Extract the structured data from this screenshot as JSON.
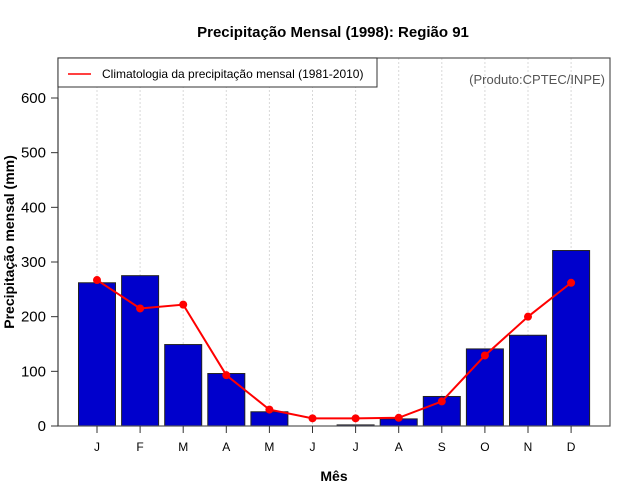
{
  "chart_data": {
    "type": "bar",
    "title": "Precipitação Mensal (1998): Região 91",
    "xlabel": "Mês",
    "ylabel": "Precipitação mensal (mm)",
    "categories": [
      "J",
      "F",
      "M",
      "A",
      "M",
      "J",
      "J",
      "A",
      "S",
      "O",
      "N",
      "D"
    ],
    "ylim": [
      0,
      670
    ],
    "yticks": [
      0,
      100,
      200,
      300,
      400,
      500,
      600
    ],
    "grid": "vertical dashed",
    "series": [
      {
        "name": "Precipitação mensal 1998",
        "type": "bar",
        "color": "#0000CC",
        "values": [
          262,
          275,
          149,
          96,
          26,
          0,
          2,
          13,
          54,
          141,
          166,
          321
        ]
      },
      {
        "name": "Climatologia da precipitação mensal (1981-2010)",
        "type": "line",
        "color": "#FF0000",
        "values": [
          267,
          215,
          222,
          93,
          30,
          14,
          14,
          15,
          45,
          129,
          200,
          262
        ]
      }
    ],
    "legend": {
      "position": "top-left",
      "entries": [
        "Climatologia da precipitação mensal (1981-2010)"
      ]
    },
    "annotation": "(Produto:CPTEC/INPE)"
  }
}
